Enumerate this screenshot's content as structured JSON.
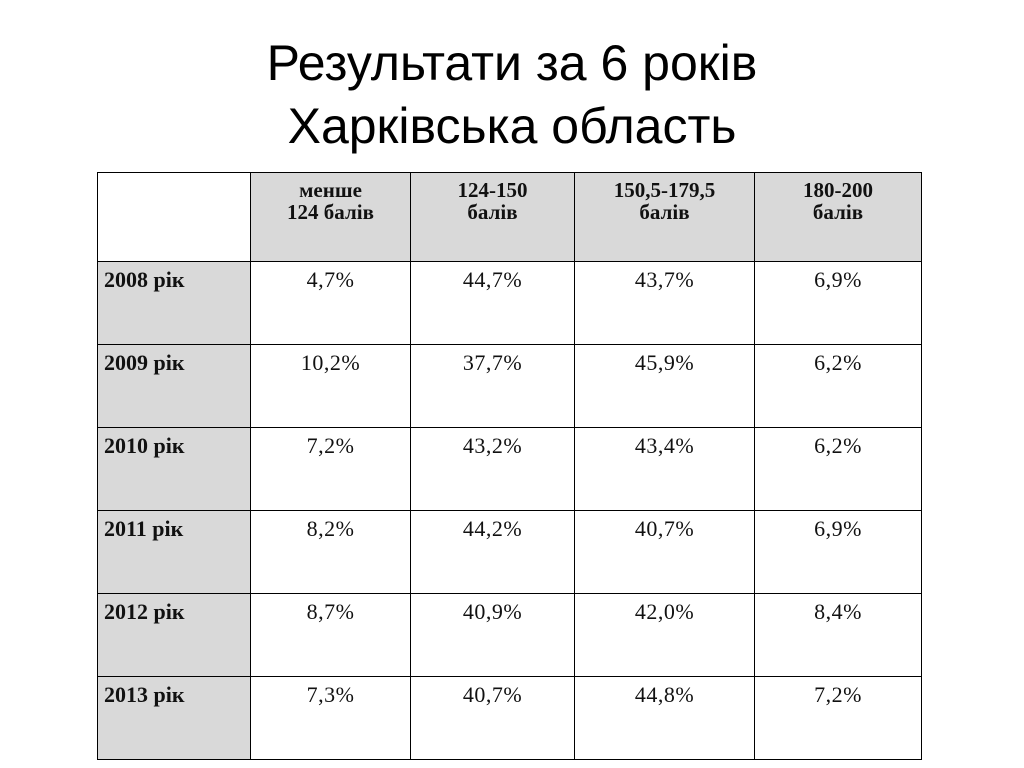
{
  "title": {
    "line1": "Результати за 6 років",
    "line2": "Харківська область"
  },
  "table": {
    "headers": [
      {
        "line1": "менше",
        "line2": "124 балів"
      },
      {
        "line1": "124-150",
        "line2": "балів"
      },
      {
        "line1": "150,5-179,5",
        "line2": "балів"
      },
      {
        "line1": "180-200",
        "line2": "балів"
      }
    ],
    "rows": [
      {
        "label": "2008 рік",
        "cells": [
          "4,7%",
          "44,7%",
          "43,7%",
          "6,9%"
        ]
      },
      {
        "label": "2009 рік",
        "cells": [
          "10,2%",
          "37,7%",
          "45,9%",
          "6,2%"
        ]
      },
      {
        "label": "2010 рік",
        "cells": [
          "7,2%",
          "43,2%",
          "43,4%",
          "6,2%"
        ]
      },
      {
        "label": "2011 рік",
        "cells": [
          "8,2%",
          "44,2%",
          "40,7%",
          "6,9%"
        ]
      },
      {
        "label": "2012 рік",
        "cells": [
          "8,7%",
          "40,9%",
          "42,0%",
          "8,4%"
        ]
      },
      {
        "label": "2013 рік",
        "cells": [
          "7,3%",
          "40,7%",
          "44,8%",
          "7,2%"
        ]
      }
    ]
  }
}
